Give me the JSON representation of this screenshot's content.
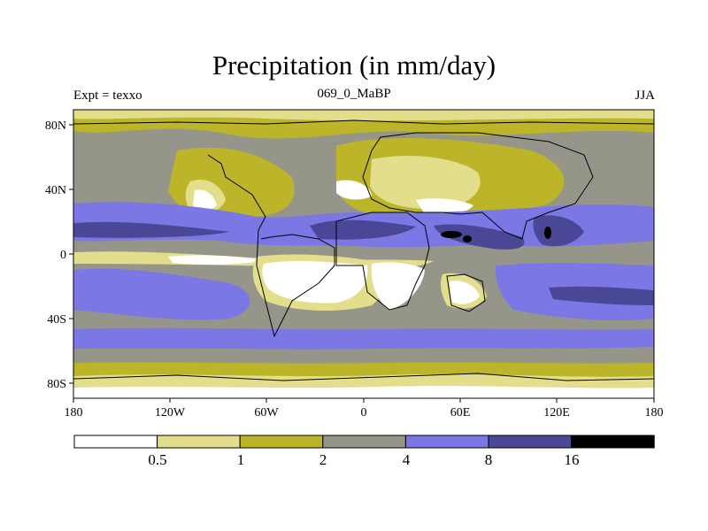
{
  "figure": {
    "title": "Precipitation (in mm/day)",
    "left_label": "Expt = texxo",
    "center_label": "069_0_MaBP",
    "right_label": "JJA"
  },
  "axes": {
    "x_ticks": [
      "180",
      "120W",
      "60W",
      "0",
      "60E",
      "120E",
      "180"
    ],
    "y_ticks": [
      "80N",
      "40N",
      "0",
      "40S",
      "80S"
    ]
  },
  "colorbar": {
    "labels": [
      "0.5",
      "1",
      "2",
      "4",
      "8",
      "16"
    ],
    "colors": [
      "#ffffff",
      "#e3de8b",
      "#bcb52a",
      "#96958a",
      "#7b78e6",
      "#4a4797",
      "#000000"
    ]
  },
  "palette": {
    "white": "#ffffff",
    "pale_yellow": "#e3de8b",
    "olive": "#bcb52a",
    "gray": "#96958a",
    "light_blue": "#7b78e6",
    "dark_blue": "#4a4797",
    "black": "#000000"
  }
}
